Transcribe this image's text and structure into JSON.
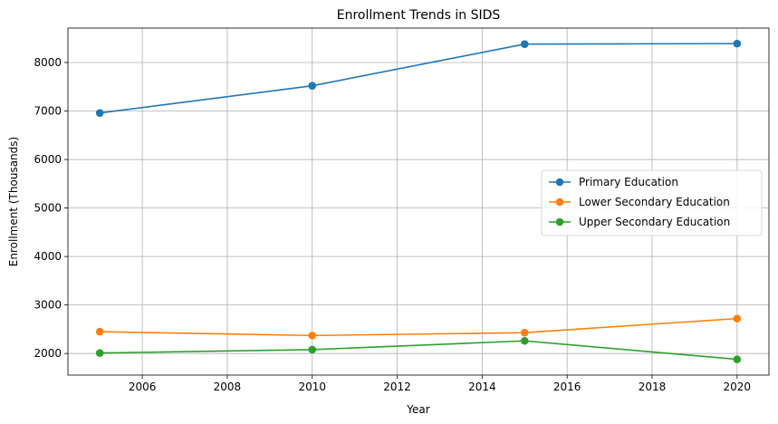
{
  "chart_data": {
    "type": "line",
    "title": "Enrollment Trends in SIDS",
    "xlabel": "Year",
    "ylabel": "Enrollment (Thousands)",
    "x": [
      2005,
      2010,
      2015,
      2020
    ],
    "xlim": [
      2004.25,
      2020.75
    ],
    "ylim": [
      1555,
      8710
    ],
    "xticks": [
      2006,
      2008,
      2010,
      2012,
      2014,
      2016,
      2018,
      2020
    ],
    "yticks": [
      2000,
      3000,
      4000,
      5000,
      6000,
      7000,
      8000
    ],
    "grid": true,
    "legend_position": "center-right",
    "series": [
      {
        "name": "Primary Education",
        "color": "#1f77b4",
        "values": [
          6960,
          7520,
          8380,
          8390
        ]
      },
      {
        "name": "Lower Secondary Education",
        "color": "#ff7f0e",
        "values": [
          2450,
          2370,
          2430,
          2720
        ]
      },
      {
        "name": "Upper Secondary Education",
        "color": "#2ca02c",
        "values": [
          2010,
          2080,
          2260,
          1880
        ]
      }
    ]
  }
}
